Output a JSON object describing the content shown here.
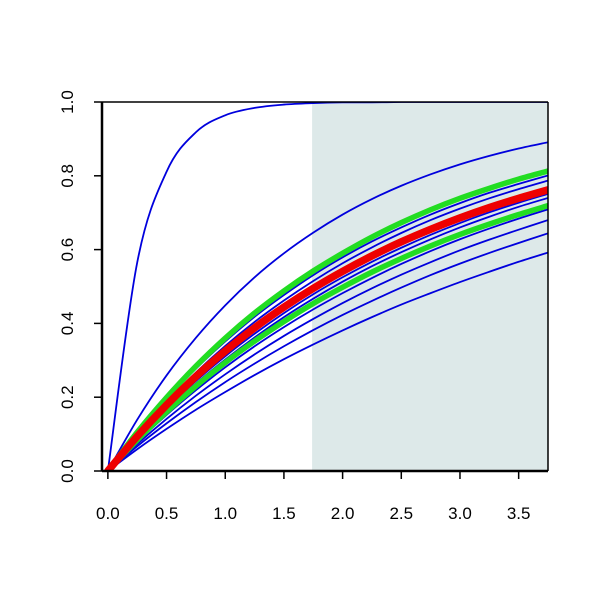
{
  "chart_data": {
    "type": "line",
    "title": "",
    "xlabel": "",
    "ylabel": "",
    "xlim": [
      -0.05,
      3.75
    ],
    "ylim": [
      0,
      1
    ],
    "grid": false,
    "legend": "none",
    "x_ticks": [
      0.0,
      0.5,
      1.0,
      1.5,
      2.0,
      2.5,
      3.0,
      3.5
    ],
    "x_tick_labels": [
      "0.0",
      "0.5",
      "1.0",
      "1.5",
      "2.0",
      "2.5",
      "3.0",
      "3.5"
    ],
    "y_ticks": [
      0.0,
      0.2,
      0.4,
      0.6,
      0.8,
      1.0
    ],
    "y_tick_labels": [
      "0.0",
      "0.2",
      "0.4",
      "0.6",
      "0.8",
      "1.0"
    ],
    "shaded_region": {
      "x_start": 1.74,
      "x_end": 3.75,
      "color": "#dde9e9"
    },
    "x": [
      0.0,
      0.25,
      0.5,
      0.75,
      1.0,
      1.25,
      1.5,
      1.75,
      2.0,
      2.25,
      2.5,
      2.75,
      3.0,
      3.25,
      3.5,
      3.75
    ],
    "series": [
      {
        "color": "#0000dd",
        "width": 1.8,
        "values": [
          0.0,
          0.565,
          0.811,
          0.918,
          0.964,
          0.984,
          0.993,
          0.997,
          0.999,
          0.999,
          1.0,
          1.0,
          1.0,
          1.0,
          1.0,
          1.0
        ]
      },
      {
        "color": "#0000dd",
        "width": 1.8,
        "values": [
          0.0,
          0.139,
          0.259,
          0.361,
          0.449,
          0.525,
          0.59,
          0.646,
          0.695,
          0.737,
          0.773,
          0.804,
          0.831,
          0.854,
          0.874,
          0.891
        ]
      },
      {
        "color": "#0000dd",
        "width": 1.8,
        "values": [
          0.0,
          0.102,
          0.194,
          0.277,
          0.351,
          0.418,
          0.477,
          0.531,
          0.579,
          0.622,
          0.66,
          0.695,
          0.726,
          0.754,
          0.778,
          0.801
        ]
      },
      {
        "color": "#0000dd",
        "width": 1.8,
        "values": [
          0.0,
          0.098,
          0.187,
          0.267,
          0.339,
          0.404,
          0.462,
          0.515,
          0.563,
          0.606,
          0.645,
          0.68,
          0.711,
          0.739,
          0.764,
          0.787
        ]
      },
      {
        "color": "#0000dd",
        "width": 1.8,
        "values": [
          0.0,
          0.089,
          0.17,
          0.244,
          0.311,
          0.372,
          0.428,
          0.479,
          0.525,
          0.567,
          0.605,
          0.64,
          0.672,
          0.701,
          0.727,
          0.751
        ]
      },
      {
        "color": "#0000dd",
        "width": 1.8,
        "values": [
          0.0,
          0.086,
          0.165,
          0.237,
          0.302,
          0.362,
          0.417,
          0.467,
          0.513,
          0.555,
          0.593,
          0.628,
          0.66,
          0.689,
          0.716,
          0.74
        ]
      },
      {
        "color": "#0000dd",
        "width": 1.8,
        "values": [
          0.0,
          0.079,
          0.152,
          0.219,
          0.281,
          0.338,
          0.39,
          0.438,
          0.482,
          0.523,
          0.561,
          0.596,
          0.628,
          0.657,
          0.684,
          0.709
        ]
      },
      {
        "color": "#0000dd",
        "width": 1.8,
        "values": [
          0.0,
          0.073,
          0.141,
          0.204,
          0.262,
          0.316,
          0.366,
          0.412,
          0.455,
          0.495,
          0.532,
          0.566,
          0.598,
          0.627,
          0.654,
          0.68
        ]
      },
      {
        "color": "#0000dd",
        "width": 1.8,
        "values": [
          0.0,
          0.067,
          0.129,
          0.187,
          0.241,
          0.291,
          0.338,
          0.382,
          0.423,
          0.461,
          0.497,
          0.531,
          0.562,
          0.591,
          0.618,
          0.644
        ]
      },
      {
        "color": "#0000dd",
        "width": 1.8,
        "values": [
          0.0,
          0.059,
          0.114,
          0.166,
          0.214,
          0.26,
          0.303,
          0.343,
          0.381,
          0.417,
          0.451,
          0.482,
          0.512,
          0.54,
          0.567,
          0.592
        ]
      },
      {
        "color": "#22dd22",
        "width": 5.5,
        "values": [
          0.0,
          0.105,
          0.199,
          0.284,
          0.36,
          0.428,
          0.488,
          0.542,
          0.59,
          0.634,
          0.673,
          0.708,
          0.739,
          0.766,
          0.791,
          0.813
        ]
      },
      {
        "color": "#22dd22",
        "width": 5.5,
        "values": [
          0.0,
          0.084,
          0.16,
          0.23,
          0.294,
          0.352,
          0.405,
          0.454,
          0.498,
          0.539,
          0.576,
          0.61,
          0.641,
          0.669,
          0.695,
          0.719
        ]
      },
      {
        "color": "#ee0000",
        "width": 7.5,
        "values": [
          0.0,
          0.094,
          0.179,
          0.256,
          0.325,
          0.388,
          0.444,
          0.495,
          0.541,
          0.583,
          0.621,
          0.655,
          0.686,
          0.714,
          0.739,
          0.762
        ]
      }
    ]
  }
}
